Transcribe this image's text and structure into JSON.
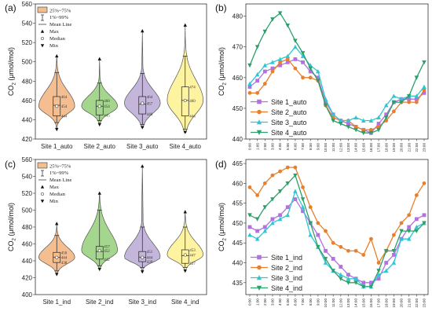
{
  "chart_data": [
    {
      "id": "a",
      "panel_label": "(a)",
      "type": "violin",
      "ylabel": "CO2 (μmol/mol)",
      "ylabel_base": "CO",
      "ylabel_sub": "2",
      "ylabel_rest": " (μmol/mol)",
      "ylim": [
        420,
        560
      ],
      "yticks": [
        420,
        440,
        460,
        480,
        500,
        520,
        540,
        560
      ],
      "categories": [
        "Site 1_auto",
        "Site 2_auto",
        "Site 3_auto",
        "Site 4_auto"
      ],
      "colors": [
        "#f5be91",
        "#a5d68e",
        "#c4b5db",
        "#fdf3a1"
      ],
      "violins": [
        {
          "min": 430,
          "p1": 437,
          "q1": 444,
          "median": 454,
          "mean": 455,
          "q3": 464,
          "p99": 489,
          "max": 506
        },
        {
          "min": 435,
          "p1": 439,
          "q1": 445,
          "median": 454,
          "mean": 454,
          "q3": 460,
          "p99": 478,
          "max": 503
        },
        {
          "min": 432,
          "p1": 435,
          "q1": 446,
          "median": 457,
          "mean": 456,
          "q3": 464,
          "p99": 488,
          "max": 532
        },
        {
          "min": 427,
          "p1": 430,
          "q1": 444,
          "median": 460,
          "mean": 460,
          "q3": 474,
          "p99": 506,
          "max": 538
        }
      ],
      "stat_labels": [
        [
          "464",
          "454",
          "444"
        ],
        [
          "460",
          "454",
          "445"
        ],
        [
          "464",
          "457",
          "446"
        ],
        [
          "474",
          "460",
          "444"
        ]
      ],
      "legend": [
        "25%~75%",
        "1%~99%",
        "Mean Line",
        "Max",
        "Median",
        "Min"
      ]
    },
    {
      "id": "b",
      "panel_label": "(b)",
      "type": "line",
      "ylabel": "CO2 (μmol/mol)",
      "ylim": [
        440,
        484
      ],
      "yticks": [
        440,
        450,
        460,
        470,
        480
      ],
      "x": [
        "0:00",
        "1:00",
        "2:00",
        "3:00",
        "4:00",
        "5:00",
        "6:00",
        "7:00",
        "8:00",
        "9:00",
        "10:00",
        "11:00",
        "12:00",
        "13:00",
        "14:00",
        "15:00",
        "16:00",
        "17:00",
        "18:00",
        "19:00",
        "20:00",
        "21:00",
        "22:00",
        "23:00"
      ],
      "series": [
        {
          "name": "Site 1_auto",
          "color": "#b270e0",
          "marker": "square",
          "values": [
            457,
            459,
            462,
            463,
            464,
            465,
            466,
            465,
            462,
            460,
            452,
            448,
            446,
            445,
            444,
            443,
            442,
            445,
            448,
            452,
            453,
            453,
            453,
            455
          ]
        },
        {
          "name": "Site 2_auto",
          "color": "#e87f2c",
          "marker": "circle",
          "values": [
            455,
            455,
            458,
            462,
            465,
            466,
            463,
            460,
            460,
            459,
            451,
            447,
            446,
            446,
            444,
            443,
            443,
            444,
            446,
            449,
            452,
            452,
            452,
            456
          ]
        },
        {
          "name": "Site 3_auto",
          "color": "#2fc6d4",
          "marker": "triangle-up",
          "values": [
            458,
            461,
            464,
            465,
            466,
            467,
            470,
            467,
            464,
            462,
            453,
            448,
            446,
            446,
            447,
            446,
            446,
            447,
            451,
            454,
            453,
            454,
            454,
            457
          ]
        },
        {
          "name": "Site 4_auto",
          "color": "#2e9f6b",
          "marker": "triangle-down",
          "values": [
            464,
            470,
            475,
            479,
            481,
            477,
            472,
            468,
            463,
            459,
            451,
            446,
            445,
            444,
            443,
            442,
            442,
            443,
            447,
            452,
            452,
            454,
            460,
            465
          ]
        }
      ],
      "legend_position": "bottom-left"
    },
    {
      "id": "c",
      "panel_label": "(c)",
      "type": "violin",
      "ylabel": "CO2 (μmol/mol)",
      "ylim": [
        400,
        560
      ],
      "yticks": [
        400,
        420,
        440,
        460,
        480,
        500,
        520,
        540,
        560
      ],
      "categories": [
        "Site 1_ind",
        "Site 2_ind",
        "Site 3_ind",
        "Site 4_ind"
      ],
      "colors": [
        "#f5be91",
        "#a5d68e",
        "#c4b5db",
        "#fdf3a1"
      ],
      "violins": [
        {
          "min": 424,
          "p1": 428,
          "q1": 438,
          "median": 444,
          "mean": 444,
          "q3": 450,
          "p99": 470,
          "max": 484
        },
        {
          "min": 430,
          "p1": 434,
          "q1": 442,
          "median": 452,
          "mean": 451,
          "q3": 457,
          "p99": 500,
          "max": 520
        },
        {
          "min": 427,
          "p1": 432,
          "q1": 439,
          "median": 444,
          "mean": 444,
          "q3": 451,
          "p99": 480,
          "max": 552
        },
        {
          "min": 428,
          "p1": 432,
          "q1": 437,
          "median": 447,
          "mean": 446,
          "q3": 453,
          "p99": 480,
          "max": 498
        }
      ],
      "stat_labels": [
        [
          "450",
          "444",
          "438"
        ],
        [
          "457",
          "452",
          "442"
        ],
        [
          "451",
          "444",
          "439"
        ],
        [
          "453",
          "447",
          "437"
        ]
      ],
      "legend": [
        "25%~75%",
        "1%~99%",
        "Mean Line",
        "Max",
        "Median",
        "Min"
      ]
    },
    {
      "id": "d",
      "panel_label": "(d)",
      "type": "line",
      "ylabel": "CO2 (μmol/mol)",
      "ylim": [
        432,
        466
      ],
      "yticks": [
        435,
        440,
        445,
        450,
        455,
        460,
        465
      ],
      "x": [
        "0:00",
        "1:00",
        "2:00",
        "3:00",
        "4:00",
        "5:00",
        "6:00",
        "7:00",
        "8:00",
        "9:00",
        "10:00",
        "11:00",
        "12:00",
        "13:00",
        "14:00",
        "15:00",
        "16:00",
        "17:00",
        "18:00",
        "19:00",
        "20:00",
        "21:00",
        "22:00",
        "23:00"
      ],
      "series": [
        {
          "name": "Site 1_ind",
          "color": "#b270e0",
          "marker": "square",
          "values": [
            449,
            448,
            449,
            451,
            452,
            454,
            456,
            453,
            450,
            447,
            443,
            441,
            439,
            437,
            436,
            435,
            435,
            436,
            440,
            442,
            446,
            449,
            451,
            452
          ]
        },
        {
          "name": "Site 2_ind",
          "color": "#e87f2c",
          "marker": "circle",
          "values": [
            459,
            457,
            460,
            462,
            463,
            464,
            464,
            459,
            454,
            450,
            448,
            445,
            444,
            443,
            443,
            442,
            446,
            440,
            443,
            447,
            450,
            452,
            457,
            460
          ]
        },
        {
          "name": "Site 3_ind",
          "color": "#2fc6d4",
          "marker": "triangle-up",
          "values": [
            447,
            446,
            448,
            450,
            451,
            452,
            458,
            454,
            447,
            444,
            440,
            438,
            437,
            436,
            436,
            434,
            434,
            437,
            438,
            440,
            446,
            446,
            449,
            450
          ]
        },
        {
          "name": "Site 4_ind",
          "color": "#2e9f6b",
          "marker": "triangle-down",
          "values": [
            452,
            451,
            454,
            456,
            458,
            460,
            462,
            456,
            450,
            444,
            441,
            438,
            436,
            435,
            435,
            434,
            434,
            438,
            443,
            443,
            448,
            448,
            448,
            450
          ]
        }
      ],
      "legend_position": "bottom-left"
    }
  ]
}
